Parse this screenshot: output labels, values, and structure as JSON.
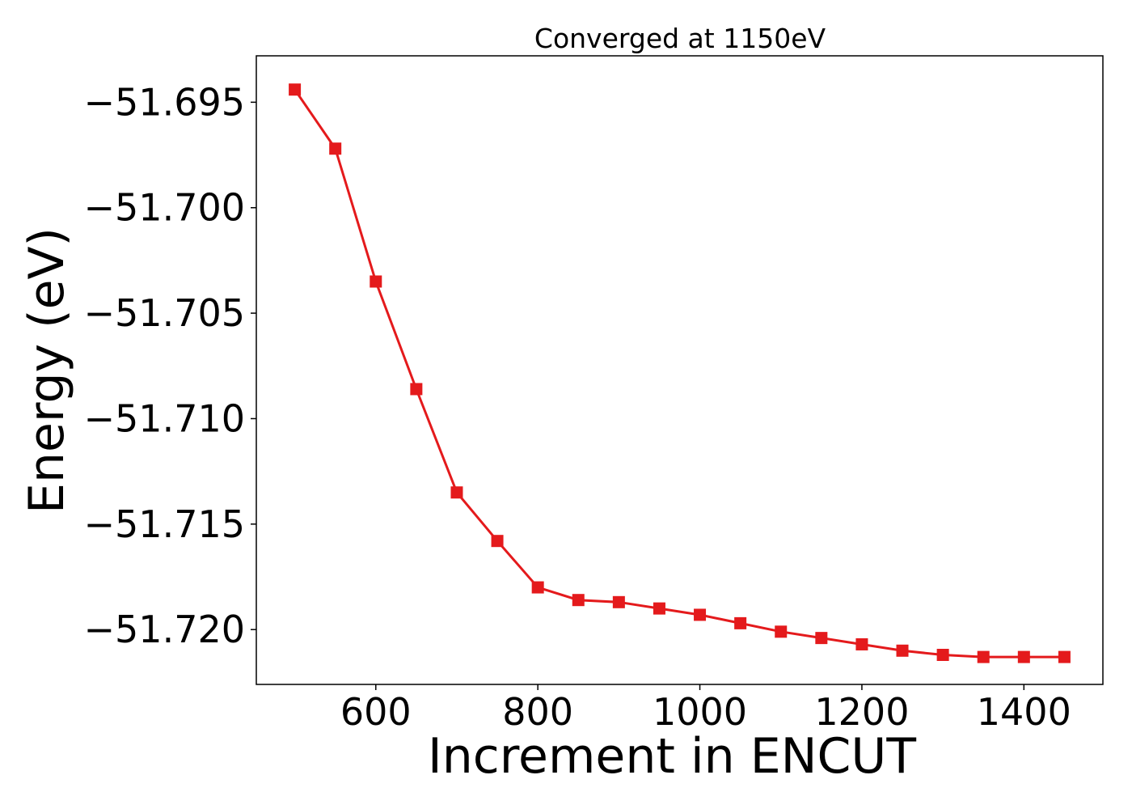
{
  "chart_data": {
    "type": "line",
    "title": "Converged at 1150eV",
    "xlabel": "Increment in ENCUT",
    "ylabel": "Energy (eV)",
    "xlim": [
      452.5,
      1497.5
    ],
    "ylim": [
      -51.7226,
      -51.6928
    ],
    "x_ticks": [
      600,
      800,
      1000,
      1200,
      1400
    ],
    "y_ticks": [
      -51.695,
      -51.7,
      -51.705,
      -51.71,
      -51.715,
      -51.72
    ],
    "x_tick_labels": [
      "600",
      "800",
      "1000",
      "1200",
      "1400"
    ],
    "y_tick_labels": [
      "−51.695",
      "−51.700",
      "−51.705",
      "−51.710",
      "−51.715",
      "−51.720"
    ],
    "grid": false,
    "legend": "none",
    "series": [
      {
        "color": "#e41a1c",
        "marker": "square",
        "x": [
          500,
          550,
          600,
          650,
          700,
          750,
          800,
          850,
          900,
          950,
          1000,
          1050,
          1100,
          1150,
          1200,
          1250,
          1300,
          1350,
          1400,
          1450
        ],
        "y": [
          -51.6944,
          -51.6972,
          -51.7035,
          -51.7086,
          -51.7135,
          -51.7158,
          -51.718,
          -51.7186,
          -51.7187,
          -51.719,
          -51.7193,
          -51.7197,
          -51.7201,
          -51.7204,
          -51.7207,
          -51.721,
          -51.7212,
          -51.7213,
          -51.7213,
          -51.7213
        ]
      }
    ]
  }
}
